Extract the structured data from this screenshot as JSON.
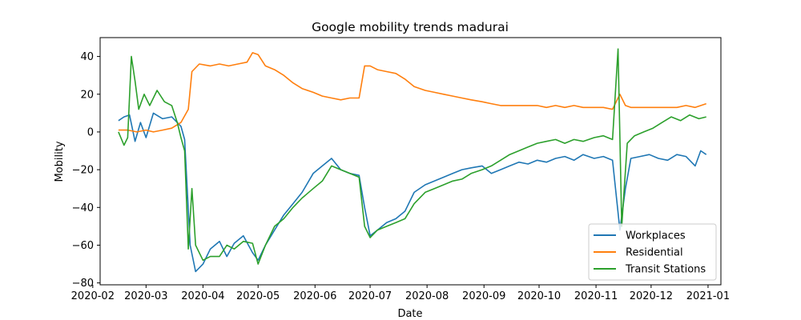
{
  "chart_data": {
    "type": "line",
    "title": "Google mobility trends madurai",
    "xlabel": "Date",
    "ylabel": "Mobility",
    "xlim": [
      "2020-02-05",
      "2021-01-08"
    ],
    "ylim": [
      -81,
      50
    ],
    "x_ticks": [
      "2020-02",
      "2020-03",
      "2020-04",
      "2020-05",
      "2020-06",
      "2020-07",
      "2020-08",
      "2020-09",
      "2020-10",
      "2020-11",
      "2020-12",
      "2021-01"
    ],
    "y_ticks": [
      40,
      20,
      0,
      -20,
      -40,
      -60,
      -80
    ],
    "grid": false,
    "legend_position": "lower-right",
    "colors": {
      "workplaces": "#1f77b4",
      "residential": "#ff7f0e",
      "transit": "#2ca02c"
    },
    "series": [
      {
        "name": "Workplaces",
        "color": "#1f77b4",
        "points": [
          [
            "2020-02-15",
            6
          ],
          [
            "2020-02-18",
            8
          ],
          [
            "2020-02-21",
            9
          ],
          [
            "2020-02-24",
            -5
          ],
          [
            "2020-02-27",
            5
          ],
          [
            "2020-03-01",
            -3
          ],
          [
            "2020-03-05",
            10
          ],
          [
            "2020-03-10",
            7
          ],
          [
            "2020-03-15",
            8
          ],
          [
            "2020-03-20",
            3
          ],
          [
            "2020-03-22",
            -4
          ],
          [
            "2020-03-25",
            -60
          ],
          [
            "2020-03-28",
            -74
          ],
          [
            "2020-04-01",
            -70
          ],
          [
            "2020-04-05",
            -62
          ],
          [
            "2020-04-10",
            -58
          ],
          [
            "2020-04-14",
            -66
          ],
          [
            "2020-04-18",
            -59
          ],
          [
            "2020-04-23",
            -55
          ],
          [
            "2020-04-28",
            -64
          ],
          [
            "2020-05-01",
            -68
          ],
          [
            "2020-05-05",
            -60
          ],
          [
            "2020-05-10",
            -52
          ],
          [
            "2020-05-15",
            -44
          ],
          [
            "2020-05-20",
            -38
          ],
          [
            "2020-05-25",
            -32
          ],
          [
            "2020-05-31",
            -22
          ],
          [
            "2020-06-05",
            -18
          ],
          [
            "2020-06-10",
            -14
          ],
          [
            "2020-06-15",
            -20
          ],
          [
            "2020-06-20",
            -22
          ],
          [
            "2020-06-25",
            -23
          ],
          [
            "2020-06-28",
            -40
          ],
          [
            "2020-07-01",
            -55
          ],
          [
            "2020-07-05",
            -52
          ],
          [
            "2020-07-10",
            -48
          ],
          [
            "2020-07-15",
            -46
          ],
          [
            "2020-07-20",
            -42
          ],
          [
            "2020-07-25",
            -32
          ],
          [
            "2020-07-31",
            -28
          ],
          [
            "2020-08-05",
            -26
          ],
          [
            "2020-08-10",
            -24
          ],
          [
            "2020-08-15",
            -22
          ],
          [
            "2020-08-20",
            -20
          ],
          [
            "2020-08-25",
            -19
          ],
          [
            "2020-08-31",
            -18
          ],
          [
            "2020-09-05",
            -22
          ],
          [
            "2020-09-10",
            -20
          ],
          [
            "2020-09-15",
            -18
          ],
          [
            "2020-09-20",
            -16
          ],
          [
            "2020-09-25",
            -17
          ],
          [
            "2020-09-30",
            -15
          ],
          [
            "2020-10-05",
            -16
          ],
          [
            "2020-10-10",
            -14
          ],
          [
            "2020-10-15",
            -13
          ],
          [
            "2020-10-20",
            -15
          ],
          [
            "2020-10-25",
            -12
          ],
          [
            "2020-10-31",
            -14
          ],
          [
            "2020-11-05",
            -13
          ],
          [
            "2020-11-10",
            -15
          ],
          [
            "2020-11-14",
            -52
          ],
          [
            "2020-11-17",
            -30
          ],
          [
            "2020-11-20",
            -14
          ],
          [
            "2020-11-25",
            -13
          ],
          [
            "2020-11-30",
            -12
          ],
          [
            "2020-12-05",
            -14
          ],
          [
            "2020-12-10",
            -15
          ],
          [
            "2020-12-15",
            -12
          ],
          [
            "2020-12-20",
            -13
          ],
          [
            "2020-12-25",
            -18
          ],
          [
            "2020-12-28",
            -10
          ],
          [
            "2020-12-31",
            -12
          ]
        ]
      },
      {
        "name": "Residential",
        "color": "#ff7f0e",
        "points": [
          [
            "2020-02-15",
            1
          ],
          [
            "2020-02-20",
            1
          ],
          [
            "2020-02-25",
            0
          ],
          [
            "2020-03-01",
            1
          ],
          [
            "2020-03-05",
            0
          ],
          [
            "2020-03-10",
            1
          ],
          [
            "2020-03-15",
            2
          ],
          [
            "2020-03-20",
            5
          ],
          [
            "2020-03-24",
            12
          ],
          [
            "2020-03-26",
            32
          ],
          [
            "2020-03-30",
            36
          ],
          [
            "2020-04-05",
            35
          ],
          [
            "2020-04-10",
            36
          ],
          [
            "2020-04-15",
            35
          ],
          [
            "2020-04-20",
            36
          ],
          [
            "2020-04-25",
            37
          ],
          [
            "2020-04-28",
            42
          ],
          [
            "2020-05-01",
            41
          ],
          [
            "2020-05-05",
            35
          ],
          [
            "2020-05-10",
            33
          ],
          [
            "2020-05-15",
            30
          ],
          [
            "2020-05-20",
            26
          ],
          [
            "2020-05-25",
            23
          ],
          [
            "2020-05-31",
            21
          ],
          [
            "2020-06-05",
            19
          ],
          [
            "2020-06-10",
            18
          ],
          [
            "2020-06-15",
            17
          ],
          [
            "2020-06-20",
            18
          ],
          [
            "2020-06-25",
            18
          ],
          [
            "2020-06-28",
            35
          ],
          [
            "2020-07-01",
            35
          ],
          [
            "2020-07-05",
            33
          ],
          [
            "2020-07-10",
            32
          ],
          [
            "2020-07-15",
            31
          ],
          [
            "2020-07-20",
            28
          ],
          [
            "2020-07-25",
            24
          ],
          [
            "2020-07-31",
            22
          ],
          [
            "2020-08-05",
            21
          ],
          [
            "2020-08-10",
            20
          ],
          [
            "2020-08-15",
            19
          ],
          [
            "2020-08-20",
            18
          ],
          [
            "2020-08-25",
            17
          ],
          [
            "2020-08-31",
            16
          ],
          [
            "2020-09-05",
            15
          ],
          [
            "2020-09-10",
            14
          ],
          [
            "2020-09-15",
            14
          ],
          [
            "2020-09-20",
            14
          ],
          [
            "2020-09-25",
            14
          ],
          [
            "2020-09-30",
            14
          ],
          [
            "2020-10-05",
            13
          ],
          [
            "2020-10-10",
            14
          ],
          [
            "2020-10-15",
            13
          ],
          [
            "2020-10-20",
            14
          ],
          [
            "2020-10-25",
            13
          ],
          [
            "2020-10-31",
            13
          ],
          [
            "2020-11-05",
            13
          ],
          [
            "2020-11-10",
            12
          ],
          [
            "2020-11-14",
            20
          ],
          [
            "2020-11-17",
            14
          ],
          [
            "2020-11-20",
            13
          ],
          [
            "2020-11-25",
            13
          ],
          [
            "2020-11-30",
            13
          ],
          [
            "2020-12-05",
            13
          ],
          [
            "2020-12-10",
            13
          ],
          [
            "2020-12-15",
            13
          ],
          [
            "2020-12-20",
            14
          ],
          [
            "2020-12-25",
            13
          ],
          [
            "2020-12-31",
            15
          ]
        ]
      },
      {
        "name": "Transit Stations",
        "color": "#2ca02c",
        "points": [
          [
            "2020-02-15",
            0
          ],
          [
            "2020-02-18",
            -7
          ],
          [
            "2020-02-20",
            -3
          ],
          [
            "2020-02-22",
            40
          ],
          [
            "2020-02-24",
            27
          ],
          [
            "2020-02-26",
            12
          ],
          [
            "2020-02-29",
            20
          ],
          [
            "2020-03-03",
            14
          ],
          [
            "2020-03-07",
            22
          ],
          [
            "2020-03-11",
            16
          ],
          [
            "2020-03-15",
            14
          ],
          [
            "2020-03-18",
            5
          ],
          [
            "2020-03-20",
            -3
          ],
          [
            "2020-03-22",
            -10
          ],
          [
            "2020-03-24",
            -62
          ],
          [
            "2020-03-26",
            -30
          ],
          [
            "2020-03-28",
            -60
          ],
          [
            "2020-04-01",
            -68
          ],
          [
            "2020-04-05",
            -66
          ],
          [
            "2020-04-10",
            -66
          ],
          [
            "2020-04-14",
            -60
          ],
          [
            "2020-04-18",
            -62
          ],
          [
            "2020-04-23",
            -58
          ],
          [
            "2020-04-28",
            -59
          ],
          [
            "2020-05-01",
            -70
          ],
          [
            "2020-05-05",
            -60
          ],
          [
            "2020-05-10",
            -50
          ],
          [
            "2020-05-15",
            -46
          ],
          [
            "2020-05-20",
            -40
          ],
          [
            "2020-05-25",
            -35
          ],
          [
            "2020-05-31",
            -30
          ],
          [
            "2020-06-05",
            -26
          ],
          [
            "2020-06-10",
            -18
          ],
          [
            "2020-06-15",
            -20
          ],
          [
            "2020-06-20",
            -22
          ],
          [
            "2020-06-25",
            -24
          ],
          [
            "2020-06-28",
            -50
          ],
          [
            "2020-07-01",
            -56
          ],
          [
            "2020-07-05",
            -52
          ],
          [
            "2020-07-10",
            -50
          ],
          [
            "2020-07-15",
            -48
          ],
          [
            "2020-07-20",
            -46
          ],
          [
            "2020-07-25",
            -38
          ],
          [
            "2020-07-31",
            -32
          ],
          [
            "2020-08-05",
            -30
          ],
          [
            "2020-08-10",
            -28
          ],
          [
            "2020-08-15",
            -26
          ],
          [
            "2020-08-20",
            -25
          ],
          [
            "2020-08-25",
            -22
          ],
          [
            "2020-08-31",
            -20
          ],
          [
            "2020-09-05",
            -18
          ],
          [
            "2020-09-10",
            -15
          ],
          [
            "2020-09-15",
            -12
          ],
          [
            "2020-09-20",
            -10
          ],
          [
            "2020-09-25",
            -8
          ],
          [
            "2020-09-30",
            -6
          ],
          [
            "2020-10-05",
            -5
          ],
          [
            "2020-10-10",
            -4
          ],
          [
            "2020-10-15",
            -6
          ],
          [
            "2020-10-20",
            -4
          ],
          [
            "2020-10-25",
            -5
          ],
          [
            "2020-10-31",
            -3
          ],
          [
            "2020-11-05",
            -2
          ],
          [
            "2020-11-10",
            -4
          ],
          [
            "2020-11-13",
            44
          ],
          [
            "2020-11-15",
            -50
          ],
          [
            "2020-11-18",
            -6
          ],
          [
            "2020-11-22",
            -2
          ],
          [
            "2020-11-27",
            0
          ],
          [
            "2020-12-02",
            2
          ],
          [
            "2020-12-07",
            5
          ],
          [
            "2020-12-12",
            8
          ],
          [
            "2020-12-17",
            6
          ],
          [
            "2020-12-22",
            9
          ],
          [
            "2020-12-27",
            7
          ],
          [
            "2020-12-31",
            8
          ]
        ]
      }
    ]
  }
}
